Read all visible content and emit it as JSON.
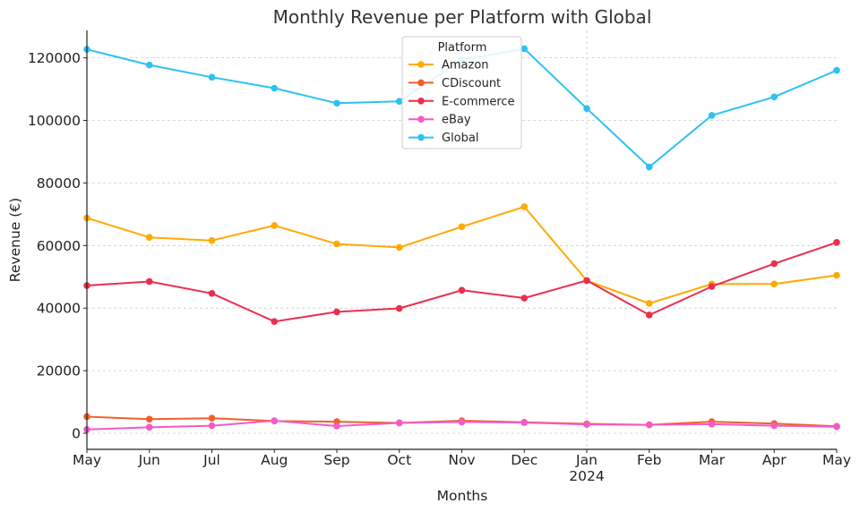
{
  "chart_data": {
    "type": "line",
    "title": "Monthly Revenue per Platform with Global",
    "xlabel": "Months",
    "ylabel": "Revenue (€)",
    "ylim": [
      -5000,
      129000
    ],
    "yticks": [
      0,
      20000,
      40000,
      60000,
      80000,
      100000,
      120000
    ],
    "categories": [
      "May",
      "Jun",
      "Jul",
      "Aug",
      "Sep",
      "Oct",
      "Nov",
      "Dec",
      "Jan",
      "Feb",
      "Mar",
      "Apr",
      "May"
    ],
    "year_marker": {
      "index": 8,
      "label": "2024"
    },
    "grid": true,
    "legend": {
      "title": "Platform",
      "placement": "top-center"
    },
    "series": [
      {
        "name": "Amazon",
        "color": "#FFAA00",
        "values": [
          68800,
          62600,
          61600,
          66400,
          60500,
          59400,
          66000,
          72400,
          48800,
          41500,
          47700,
          47700,
          50500
        ]
      },
      {
        "name": "CDiscount",
        "color": "#F0612A",
        "values": [
          5300,
          4500,
          4800,
          3900,
          3700,
          3300,
          4000,
          3500,
          3000,
          2700,
          3700,
          3100,
          2200
        ]
      },
      {
        "name": "E-commerce",
        "color": "#E9304E",
        "values": [
          47200,
          48500,
          44700,
          35700,
          38800,
          39900,
          45700,
          43200,
          48800,
          37800,
          46900,
          54200,
          61000
        ]
      },
      {
        "name": "eBay",
        "color": "#F25BC8",
        "values": [
          1200,
          1900,
          2400,
          4000,
          2300,
          3300,
          3600,
          3400,
          2800,
          2700,
          2900,
          2400,
          2100
        ]
      },
      {
        "name": "Global",
        "color": "#2EC1F2",
        "values": [
          122700,
          117700,
          113800,
          110300,
          105500,
          106100,
          119300,
          122900,
          103800,
          85100,
          101600,
          107500,
          116000
        ]
      }
    ]
  }
}
